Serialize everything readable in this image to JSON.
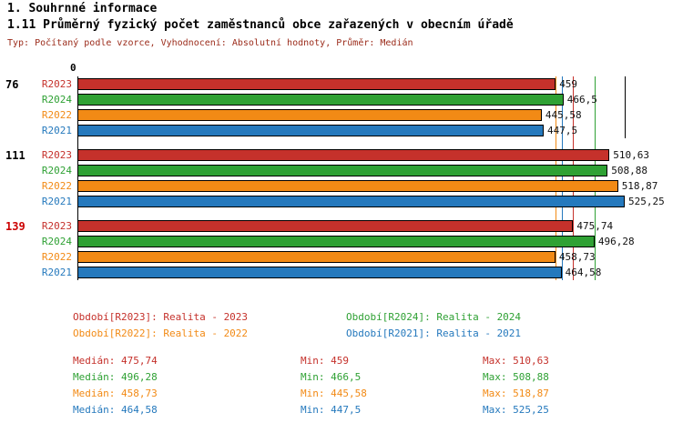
{
  "header": {
    "title": "1. Souhrnné informace",
    "subtitle": "1.11 Průměrný fyzický počet zaměstnanců obce zařazených v obecním úřadě",
    "meta": "Typ: Počítaný podle vzorce, Vyhodnocení: Absolutní hodnoty, Průměr: Medián"
  },
  "chart_data": {
    "type": "bar",
    "orientation": "horizontal",
    "xlim": [
      0,
      525.25
    ],
    "axis_zero_label": "0",
    "grid": "off",
    "legend_position": "bottom",
    "series_colors": {
      "R2023": "#c5312b",
      "R2024": "#2fa134",
      "R2022": "#f28a15",
      "R2021": "#2579bd"
    },
    "groups": [
      {
        "label": "76",
        "label_color": "#000000",
        "bars": [
          {
            "series": "R2023",
            "value": 459,
            "display": "459"
          },
          {
            "series": "R2024",
            "value": 466.5,
            "display": "466,5"
          },
          {
            "series": "R2022",
            "value": 445.58,
            "display": "445,58"
          },
          {
            "series": "R2021",
            "value": 447.5,
            "display": "447,5"
          }
        ]
      },
      {
        "label": "111",
        "label_color": "#000000",
        "bars": [
          {
            "series": "R2023",
            "value": 510.63,
            "display": "510,63"
          },
          {
            "series": "R2024",
            "value": 508.88,
            "display": "508,88"
          },
          {
            "series": "R2022",
            "value": 518.87,
            "display": "518,87"
          },
          {
            "series": "R2021",
            "value": 525.25,
            "display": "525,25"
          }
        ]
      },
      {
        "label": "139",
        "label_color": "#cc0000",
        "bars": [
          {
            "series": "R2023",
            "value": 475.74,
            "display": "475,74"
          },
          {
            "series": "R2024",
            "value": 496.28,
            "display": "496,28"
          },
          {
            "series": "R2022",
            "value": 458.73,
            "display": "458,73"
          },
          {
            "series": "R2021",
            "value": 464.58,
            "display": "464,58"
          }
        ]
      }
    ],
    "legend": [
      {
        "series": "R2023",
        "label": "Období[R2023]: Realita - 2023"
      },
      {
        "series": "R2024",
        "label": "Období[R2024]: Realita - 2024"
      },
      {
        "series": "R2022",
        "label": "Období[R2022]: Realita - 2022"
      },
      {
        "series": "R2021",
        "label": "Období[R2021]: Realita - 2021"
      }
    ],
    "stats": [
      {
        "series": "R2023",
        "median_value": 475.74,
        "median_text": "Medián: 475,74",
        "min_text": "Min: 459",
        "max_text": "Max: 510,63"
      },
      {
        "series": "R2024",
        "median_value": 496.28,
        "median_text": "Medián: 496,28",
        "min_text": "Min: 466,5",
        "max_text": "Max: 508,88"
      },
      {
        "series": "R2022",
        "median_value": 458.73,
        "median_text": "Medián: 458,73",
        "min_text": "Min: 445,58",
        "max_text": "Max: 518,87"
      },
      {
        "series": "R2021",
        "median_value": 464.58,
        "median_text": "Medián: 464,58",
        "min_text": "Min: 447,5",
        "max_text": "Max: 525,25"
      }
    ]
  }
}
